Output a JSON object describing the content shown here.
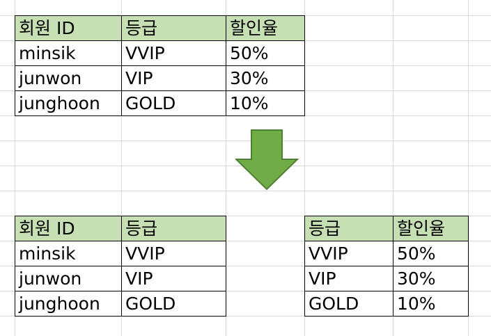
{
  "sheet": {
    "colors": {
      "gridline": "#d9d9d9",
      "header_fill": "#c6e0b4",
      "arrow_fill": "#70ad47",
      "arrow_stroke": "#507e32"
    }
  },
  "source_table": {
    "headers": [
      "회원 ID",
      "등급",
      "할인율"
    ],
    "rows": [
      [
        "minsik",
        "VVIP",
        "50%"
      ],
      [
        "junwon",
        "VIP",
        "30%"
      ],
      [
        "junghoon",
        "GOLD",
        "10%"
      ]
    ]
  },
  "arrow_icon": "down-arrow-icon",
  "member_table": {
    "headers": [
      "회원 ID",
      "등급"
    ],
    "rows": [
      [
        "minsik",
        "VVIP"
      ],
      [
        "junwon",
        "VIP"
      ],
      [
        "junghoon",
        "GOLD"
      ]
    ]
  },
  "grade_table": {
    "headers": [
      "등급",
      "할인율"
    ],
    "rows": [
      [
        "VVIP",
        "50%"
      ],
      [
        "VIP",
        "30%"
      ],
      [
        "GOLD",
        "10%"
      ]
    ]
  }
}
